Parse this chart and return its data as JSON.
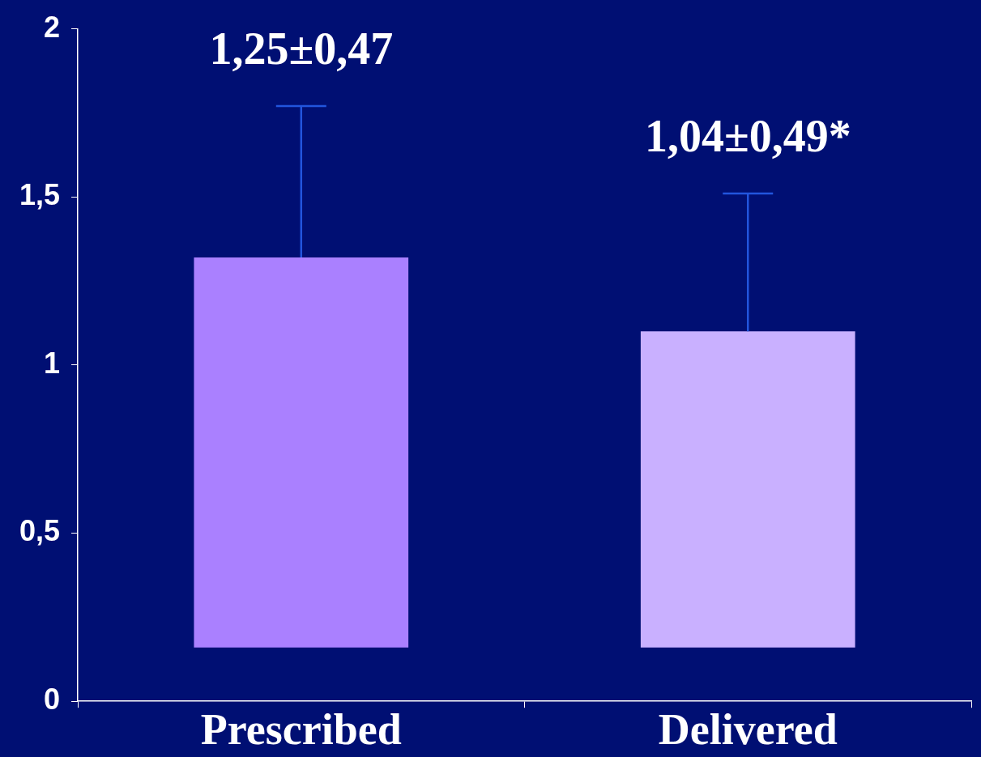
{
  "chart_data": {
    "type": "bar",
    "categories": [
      "Prescribed",
      "Delivered"
    ],
    "values": [
      1.16,
      0.94
    ],
    "base": [
      0.16,
      0.16
    ],
    "colors": [
      "#aa80ff",
      "#c9b0ff"
    ],
    "errors": [
      [
        1.32,
        1.77
      ],
      [
        1.1,
        1.51
      ]
    ],
    "annotations": [
      "1,25±0,47",
      "1,04±0,49*"
    ],
    "ylim": [
      0,
      2
    ],
    "yticks": [
      {
        "value": 0,
        "label": "0"
      },
      {
        "value": 0.5,
        "label": "0,5"
      },
      {
        "value": 1,
        "label": "1"
      },
      {
        "value": 1.5,
        "label": "1,5"
      },
      {
        "value": 2,
        "label": "2"
      }
    ]
  }
}
